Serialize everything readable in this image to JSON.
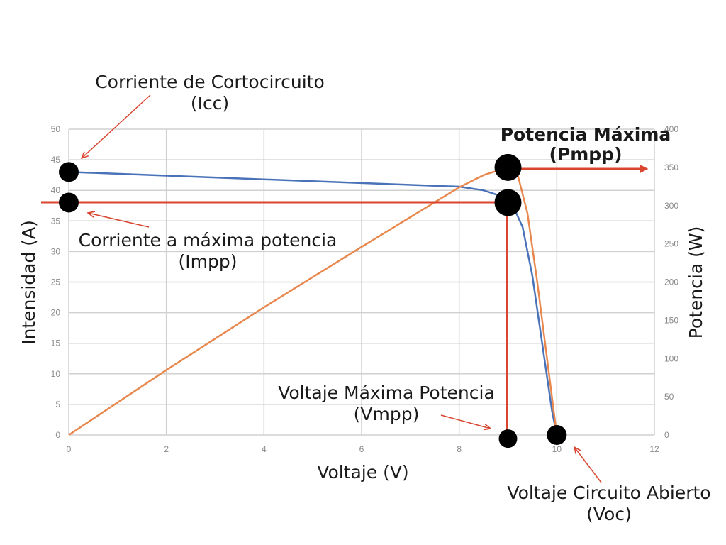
{
  "colors": {
    "current_curve": "#4a72b8",
    "power_curve": "#e8884e",
    "annotation_red": "#d9452f",
    "grid": "#d0d0d0",
    "marker": "#000000"
  },
  "chart_data": {
    "type": "line",
    "xlabel": "Voltaje (V)",
    "ylabel_left": "Intensidad (A)",
    "ylabel_right": "Potencia (W)",
    "xlim": [
      0,
      12
    ],
    "ylim_left": [
      0,
      50
    ],
    "ylim_right": [
      0,
      400
    ],
    "x_ticks": [
      "0",
      "2",
      "4",
      "6",
      "8",
      "10",
      "12"
    ],
    "y_left_ticks": [
      "0",
      "5",
      "10",
      "15",
      "20",
      "25",
      "30",
      "35",
      "40",
      "45",
      "50"
    ],
    "y_right_ticks": [
      "0",
      "50",
      "100",
      "150",
      "200",
      "250",
      "300",
      "350",
      "400"
    ],
    "grid": true,
    "series": [
      {
        "axis": "left",
        "points": [
          [
            0,
            43
          ],
          [
            2,
            42.4
          ],
          [
            4,
            41.8
          ],
          [
            6,
            41.2
          ],
          [
            8,
            40.6
          ],
          [
            8.5,
            40
          ],
          [
            8.8,
            39.2
          ],
          [
            9.1,
            37.5
          ],
          [
            9.3,
            34
          ],
          [
            9.5,
            26
          ],
          [
            9.7,
            15
          ],
          [
            9.9,
            4
          ],
          [
            10,
            0
          ]
        ]
      },
      {
        "axis": "right",
        "points": [
          [
            0,
            0
          ],
          [
            2,
            85
          ],
          [
            4,
            167
          ],
          [
            6,
            246
          ],
          [
            8,
            324
          ],
          [
            8.5,
            340
          ],
          [
            8.8,
            346
          ],
          [
            9,
            348
          ],
          [
            9.2,
            340
          ],
          [
            9.4,
            290
          ],
          [
            9.6,
            200
          ],
          [
            9.8,
            100
          ],
          [
            10,
            0
          ]
        ]
      }
    ],
    "key_points": [
      {
        "name": "Icc",
        "x": 0,
        "y": 43,
        "axis": "left"
      },
      {
        "name": "Impp",
        "x": 0,
        "y": 38,
        "axis": "left"
      },
      {
        "name": "Pmpp",
        "x": 9,
        "y": 350,
        "axis": "right"
      },
      {
        "name": "mpp_current",
        "x": 9,
        "y": 38,
        "axis": "left"
      },
      {
        "name": "Vmpp",
        "x": 9,
        "y": -0.6,
        "axis": "left"
      },
      {
        "name": "Voc",
        "x": 10,
        "y": 0,
        "axis": "left"
      }
    ]
  },
  "annotations": {
    "icc": {
      "line1": "Corriente de Cortocircuito",
      "line2": "(Icc)"
    },
    "impp": {
      "line1": "Corriente a máxima potencia",
      "line2": "(Impp)"
    },
    "pmpp": {
      "line1": "Potencia Máxima",
      "line2": "(Pmpp)"
    },
    "vmpp": {
      "line1": "Voltaje Máxima Potencia",
      "line2": "(Vmpp)"
    },
    "voc": {
      "line1": "Voltaje Circuito Abierto",
      "line2": "(Voc)"
    }
  }
}
